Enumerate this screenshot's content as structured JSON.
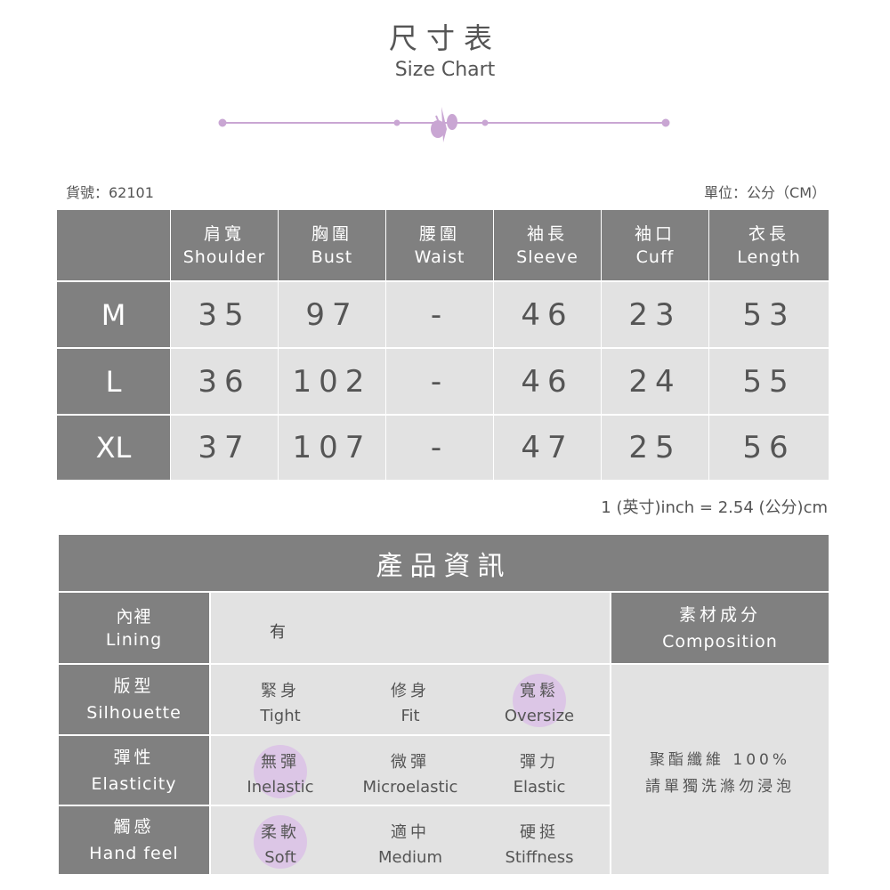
{
  "title_zh": "尺寸表",
  "title_en": "Size Chart",
  "item_no": "貨號：62101",
  "unit": "單位：公分（CM）",
  "columns": [
    {
      "zh": "肩寬",
      "en": "Shoulder"
    },
    {
      "zh": "胸圍",
      "en": "Bust"
    },
    {
      "zh": "腰圍",
      "en": "Waist"
    },
    {
      "zh": "袖長",
      "en": "Sleeve"
    },
    {
      "zh": "袖口",
      "en": "Cuff"
    },
    {
      "zh": "衣長",
      "en": "Length"
    }
  ],
  "rows": [
    {
      "size": "M",
      "values": [
        "35",
        "97",
        "-",
        "46",
        "23",
        "53"
      ]
    },
    {
      "size": "L",
      "values": [
        "36",
        "102",
        "-",
        "46",
        "24",
        "55"
      ]
    },
    {
      "size": "XL",
      "values": [
        "37",
        "107",
        "-",
        "47",
        "25",
        "56"
      ]
    }
  ],
  "conversion": "1 (英寸)inch = 2.54 (公分)cm",
  "info": {
    "title": "產品資訊",
    "lining": {
      "zh": "內裡",
      "en": "Lining",
      "value": "有"
    },
    "composition": {
      "zh": "素材成分",
      "en": "Composition",
      "line1": "聚酯纖維 100%",
      "line2": "請單獨洗滌勿浸泡"
    },
    "attrs": [
      {
        "zh": "版型",
        "en": "Silhouette",
        "options": [
          {
            "zh": "緊身",
            "en": "Tight"
          },
          {
            "zh": "修身",
            "en": "Fit"
          },
          {
            "zh": "寬鬆",
            "en": "Oversize"
          }
        ],
        "selected": 2
      },
      {
        "zh": "彈性",
        "en": "Elasticity",
        "options": [
          {
            "zh": "無彈",
            "en": "Inelastic"
          },
          {
            "zh": "微彈",
            "en": "Microelastic"
          },
          {
            "zh": "彈力",
            "en": "Elastic"
          }
        ],
        "selected": 0
      },
      {
        "zh": "觸感",
        "en": "Hand feel",
        "options": [
          {
            "zh": "柔軟",
            "en": "Soft"
          },
          {
            "zh": "適中",
            "en": "Medium"
          },
          {
            "zh": "硬挺",
            "en": "Stiffness"
          }
        ],
        "selected": 0
      }
    ]
  },
  "colors": {
    "header": "#808080",
    "cell": "#e2e2e2",
    "accent": "#c9a6d3"
  }
}
